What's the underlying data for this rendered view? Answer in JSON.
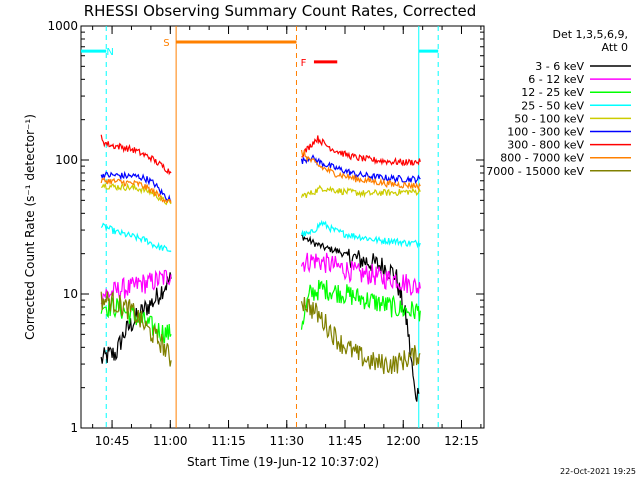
{
  "chart_data": {
    "type": "line",
    "title": "RHESSI Observing Summary Count Rates, Corrected",
    "xlabel": "Start Time (19-Jun-12 10:37:02)",
    "ylabel": "Corrected Count Rate (s⁻¹ detector⁻¹)",
    "ylog": true,
    "ylim": [
      1,
      1000
    ],
    "x_unit": "minutes after 10:37:02",
    "xlim": [
      0,
      103.8
    ],
    "x_ticks": [
      {
        "label": "10:45",
        "x": 8
      },
      {
        "label": "11:00",
        "x": 23
      },
      {
        "label": "11:15",
        "x": 38
      },
      {
        "label": "11:30",
        "x": 53
      },
      {
        "label": "11:45",
        "x": 68
      },
      {
        "label": "12:00",
        "x": 83
      },
      {
        "label": "12:15",
        "x": 98
      }
    ],
    "y_ticks": [
      {
        "label": "1",
        "v": 1
      },
      {
        "label": "10",
        "v": 10
      },
      {
        "label": "100",
        "v": 100
      },
      {
        "label": "1000",
        "v": 1000
      }
    ],
    "legend_header": [
      "Det 1,3,5,6,9,",
      "Att 0"
    ],
    "legend_position": "right",
    "series": [
      {
        "name": "3 - 6 keV",
        "color": "#000000",
        "points": [
          [
            5.2,
            3.2
          ],
          [
            7,
            3.5
          ],
          [
            9,
            3.6
          ],
          [
            11,
            5
          ],
          [
            13,
            6
          ],
          [
            15,
            7
          ],
          [
            17,
            8
          ],
          [
            19,
            9
          ],
          [
            21,
            11
          ],
          [
            23.2,
            13
          ],
          null,
          [
            56.8,
            27
          ],
          [
            60,
            24
          ],
          [
            63,
            22
          ],
          [
            66,
            21
          ],
          [
            69,
            19
          ],
          [
            72,
            18
          ],
          [
            75,
            17
          ],
          [
            78,
            16
          ],
          [
            81,
            14
          ],
          [
            84,
            6
          ],
          [
            86,
            1.8
          ],
          [
            87,
            1.8
          ]
        ]
      },
      {
        "name": "6 - 12 keV",
        "color": "#ff00ff",
        "points": [
          [
            5.2,
            10
          ],
          [
            7,
            10
          ],
          [
            9,
            10.5
          ],
          [
            11,
            11
          ],
          [
            13,
            11
          ],
          [
            15,
            12
          ],
          [
            17,
            12
          ],
          [
            19,
            12.5
          ],
          [
            21,
            13
          ],
          [
            23.2,
            14
          ],
          null,
          [
            56.8,
            17
          ],
          [
            60,
            18
          ],
          [
            63,
            17
          ],
          [
            66,
            16
          ],
          [
            69,
            15
          ],
          [
            72,
            14
          ],
          [
            75,
            14
          ],
          [
            78,
            13
          ],
          [
            81,
            13
          ],
          [
            84,
            12
          ],
          [
            87.4,
            11
          ]
        ]
      },
      {
        "name": "12 - 25 keV",
        "color": "#00ff00",
        "points": [
          [
            5.2,
            8.5
          ],
          [
            7,
            8
          ],
          [
            9,
            8
          ],
          [
            11,
            7.5
          ],
          [
            13,
            7
          ],
          [
            15,
            6.5
          ],
          [
            17,
            6
          ],
          [
            19,
            5.5
          ],
          [
            21,
            5.2
          ],
          [
            23.2,
            5
          ],
          null,
          [
            56.8,
            6
          ],
          [
            59,
            10
          ],
          [
            62,
            11
          ],
          [
            65,
            10.5
          ],
          [
            68,
            10
          ],
          [
            71,
            9.5
          ],
          [
            74,
            9
          ],
          [
            77,
            8.5
          ],
          [
            80,
            8
          ],
          [
            84,
            7.5
          ],
          [
            87.4,
            7.5
          ]
        ]
      },
      {
        "name": "25 - 50 keV",
        "color": "#00ffff",
        "points": [
          [
            5.2,
            32
          ],
          [
            7,
            31
          ],
          [
            9,
            29
          ],
          [
            11,
            28
          ],
          [
            13,
            27
          ],
          [
            15,
            26
          ],
          [
            17,
            25
          ],
          [
            19,
            23
          ],
          [
            21,
            22
          ],
          [
            23.2,
            21
          ],
          null,
          [
            56.8,
            28
          ],
          [
            59,
            28
          ],
          [
            62,
            34
          ],
          [
            65,
            30
          ],
          [
            68,
            28
          ],
          [
            71,
            27
          ],
          [
            74,
            26
          ],
          [
            77,
            25
          ],
          [
            80,
            25
          ],
          [
            84,
            24
          ],
          [
            87.4,
            24
          ]
        ]
      },
      {
        "name": "50 - 100 keV",
        "color": "#cccc00",
        "points": [
          [
            5.2,
            66
          ],
          [
            7,
            64
          ],
          [
            9,
            63
          ],
          [
            11,
            63
          ],
          [
            13,
            62
          ],
          [
            15,
            61
          ],
          [
            17,
            59
          ],
          [
            19,
            56
          ],
          [
            21,
            50
          ],
          [
            23.2,
            47
          ],
          null,
          [
            56.8,
            54
          ],
          [
            59,
            56
          ],
          [
            62,
            62
          ],
          [
            65,
            60
          ],
          [
            68,
            58
          ],
          [
            71,
            57
          ],
          [
            74,
            56
          ],
          [
            77,
            57
          ],
          [
            80,
            57
          ],
          [
            84,
            58
          ],
          [
            87.4,
            58
          ]
        ]
      },
      {
        "name": "100 - 300 keV",
        "color": "#0000ff",
        "points": [
          [
            5.2,
            78
          ],
          [
            7,
            77
          ],
          [
            9,
            77
          ],
          [
            11,
            76
          ],
          [
            13,
            76
          ],
          [
            15,
            75
          ],
          [
            17,
            72
          ],
          [
            19,
            66
          ],
          [
            21,
            56
          ],
          [
            23.2,
            50
          ],
          null,
          [
            56.8,
            98
          ],
          [
            59,
            105
          ],
          [
            62,
            95
          ],
          [
            65,
            88
          ],
          [
            68,
            83
          ],
          [
            71,
            78
          ],
          [
            74,
            76
          ],
          [
            77,
            74
          ],
          [
            80,
            73
          ],
          [
            84,
            72
          ],
          [
            87.4,
            72
          ]
        ]
      },
      {
        "name": "300 - 800 keV",
        "color": "#ff0000",
        "points": [
          [
            5.2,
            150
          ],
          [
            6,
            135
          ],
          [
            8,
            128
          ],
          [
            10,
            126
          ],
          [
            12,
            122
          ],
          [
            14,
            118
          ],
          [
            16,
            110
          ],
          [
            18,
            104
          ],
          [
            20,
            94
          ],
          [
            22,
            86
          ],
          [
            23.2,
            80
          ],
          null,
          [
            56.8,
            110
          ],
          [
            58,
            118
          ],
          [
            60,
            138
          ],
          [
            61,
            145
          ],
          [
            63,
            130
          ],
          [
            65,
            120
          ],
          [
            68,
            110
          ],
          [
            71,
            104
          ],
          [
            74,
            101
          ],
          [
            77,
            99
          ],
          [
            80,
            97
          ],
          [
            84,
            96
          ],
          [
            87.4,
            97
          ]
        ]
      },
      {
        "name": "800 - 7000 keV",
        "color": "#ff8000",
        "points": [
          [
            5.2,
            70
          ],
          [
            7,
            70
          ],
          [
            9,
            69
          ],
          [
            11,
            68
          ],
          [
            13,
            67
          ],
          [
            15,
            66
          ],
          [
            17,
            62
          ],
          [
            19,
            57
          ],
          [
            21,
            52
          ],
          [
            23.2,
            48
          ],
          null,
          [
            56.8,
            115
          ],
          [
            59,
            100
          ],
          [
            62,
            88
          ],
          [
            65,
            80
          ],
          [
            68,
            76
          ],
          [
            71,
            72
          ],
          [
            74,
            70
          ],
          [
            77,
            68
          ],
          [
            80,
            66
          ],
          [
            84,
            65
          ],
          [
            87.4,
            64
          ]
        ]
      },
      {
        "name": "7000 - 15000 keV",
        "color": "#808000",
        "points": [
          [
            5.2,
            9
          ],
          [
            7,
            9
          ],
          [
            9,
            8.5
          ],
          [
            11,
            8
          ],
          [
            13,
            7.5
          ],
          [
            15,
            6.5
          ],
          [
            17,
            5.5
          ],
          [
            19,
            4.8
          ],
          [
            21,
            4.2
          ],
          [
            23.2,
            3.2
          ],
          null,
          [
            56.8,
            9
          ],
          [
            59,
            8
          ],
          [
            61,
            7
          ],
          [
            63,
            6
          ],
          [
            65,
            5
          ],
          [
            67,
            4.3
          ],
          [
            69,
            3.9
          ],
          [
            72,
            3.4
          ],
          [
            75,
            3.1
          ],
          [
            78,
            3
          ],
          [
            81,
            3
          ],
          [
            84,
            3.3
          ],
          [
            87.4,
            3.6
          ]
        ]
      }
    ],
    "flags": [
      {
        "label": "N",
        "color": "#00ffff",
        "level": 650,
        "segments": [
          [
            0,
            6.5
          ],
          [
            87,
            92
          ]
        ],
        "label_x": 7.5
      },
      {
        "label": "S",
        "color": "#ff8000",
        "level": 760,
        "segments": [
          [
            24.5,
            55.5
          ]
        ],
        "label_x": 22
      },
      {
        "label": "F",
        "color": "#ff0000",
        "level": 540,
        "segments": [
          [
            60,
            66
          ]
        ],
        "label_x": 57.3
      }
    ],
    "markers": [
      {
        "color": "#00ffff",
        "x": 6.5,
        "style": "dashed"
      },
      {
        "color": "#00ffff",
        "x": 87,
        "style": "solid"
      },
      {
        "color": "#00ffff",
        "x": 92,
        "style": "dashed"
      },
      {
        "color": "#ff8000",
        "x": 24.5,
        "style": "solid"
      },
      {
        "color": "#ff8000",
        "x": 55.5,
        "style": "dashed"
      }
    ]
  },
  "footer": {
    "date": "22-Oct-2021 19:25"
  }
}
